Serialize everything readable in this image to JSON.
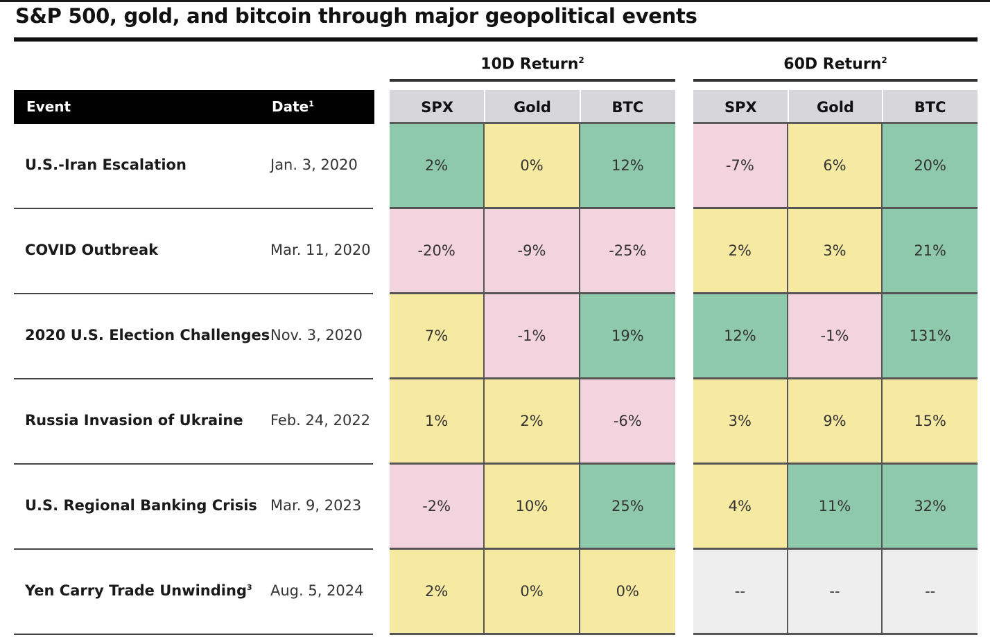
{
  "title": "S&P 500, gold, and bitcoin through major geopolitical events",
  "groups": [
    {
      "label": "10D Return",
      "note": "2"
    },
    {
      "label": "60D Return",
      "note": "2"
    }
  ],
  "headers": {
    "event": "Event",
    "date": "Date",
    "date_note": "1",
    "columns": [
      "SPX",
      "Gold",
      "BTC"
    ]
  },
  "colors": {
    "positive": "#8fc9ac",
    "neutral": "#f6e9a1",
    "negative": "#f3d3de",
    "na": "#eeeeee"
  },
  "chart_data": {
    "type": "table",
    "title": "S&P 500, gold, and bitcoin through major geopolitical events",
    "columns": [
      "Event",
      "Date",
      "10D SPX",
      "10D Gold",
      "10D BTC",
      "60D SPX",
      "60D Gold",
      "60D BTC"
    ],
    "rows": [
      {
        "event": "U.S.-Iran Escalation",
        "note": "",
        "date": "Jan. 3, 2020",
        "r10": [
          "2%",
          "0%",
          "12%"
        ],
        "r60": [
          "-7%",
          "6%",
          "20%"
        ],
        "c10": [
          "positive",
          "neutral",
          "positive"
        ],
        "c60": [
          "negative",
          "neutral",
          "positive"
        ]
      },
      {
        "event": "COVID Outbreak",
        "note": "",
        "date": "Mar. 11, 2020",
        "r10": [
          "-20%",
          "-9%",
          "-25%"
        ],
        "r60": [
          "2%",
          "3%",
          "21%"
        ],
        "c10": [
          "negative",
          "negative",
          "negative"
        ],
        "c60": [
          "neutral",
          "neutral",
          "positive"
        ]
      },
      {
        "event": "2020 U.S. Election Challenges",
        "note": "",
        "date": "Nov. 3, 2020",
        "r10": [
          "7%",
          "-1%",
          "19%"
        ],
        "r60": [
          "12%",
          "-1%",
          "131%"
        ],
        "c10": [
          "neutral",
          "negative",
          "positive"
        ],
        "c60": [
          "positive",
          "negative",
          "positive"
        ]
      },
      {
        "event": "Russia Invasion of Ukraine",
        "note": "",
        "date": "Feb. 24, 2022",
        "r10": [
          "1%",
          "2%",
          "-6%"
        ],
        "r60": [
          "3%",
          "9%",
          "15%"
        ],
        "c10": [
          "neutral",
          "neutral",
          "negative"
        ],
        "c60": [
          "neutral",
          "neutral",
          "neutral"
        ]
      },
      {
        "event": "U.S. Regional Banking Crisis",
        "note": "",
        "date": "Mar. 9, 2023",
        "r10": [
          "-2%",
          "10%",
          "25%"
        ],
        "r60": [
          "4%",
          "11%",
          "32%"
        ],
        "c10": [
          "negative",
          "neutral",
          "positive"
        ],
        "c60": [
          "neutral",
          "positive",
          "positive"
        ]
      },
      {
        "event": "Yen Carry Trade Unwinding",
        "note": "3",
        "date": "Aug. 5, 2024",
        "r10": [
          "2%",
          "0%",
          "0%"
        ],
        "r60": [
          "--",
          "--",
          "--"
        ],
        "c10": [
          "neutral",
          "neutral",
          "neutral"
        ],
        "c60": [
          "na",
          "na",
          "na"
        ]
      }
    ]
  }
}
